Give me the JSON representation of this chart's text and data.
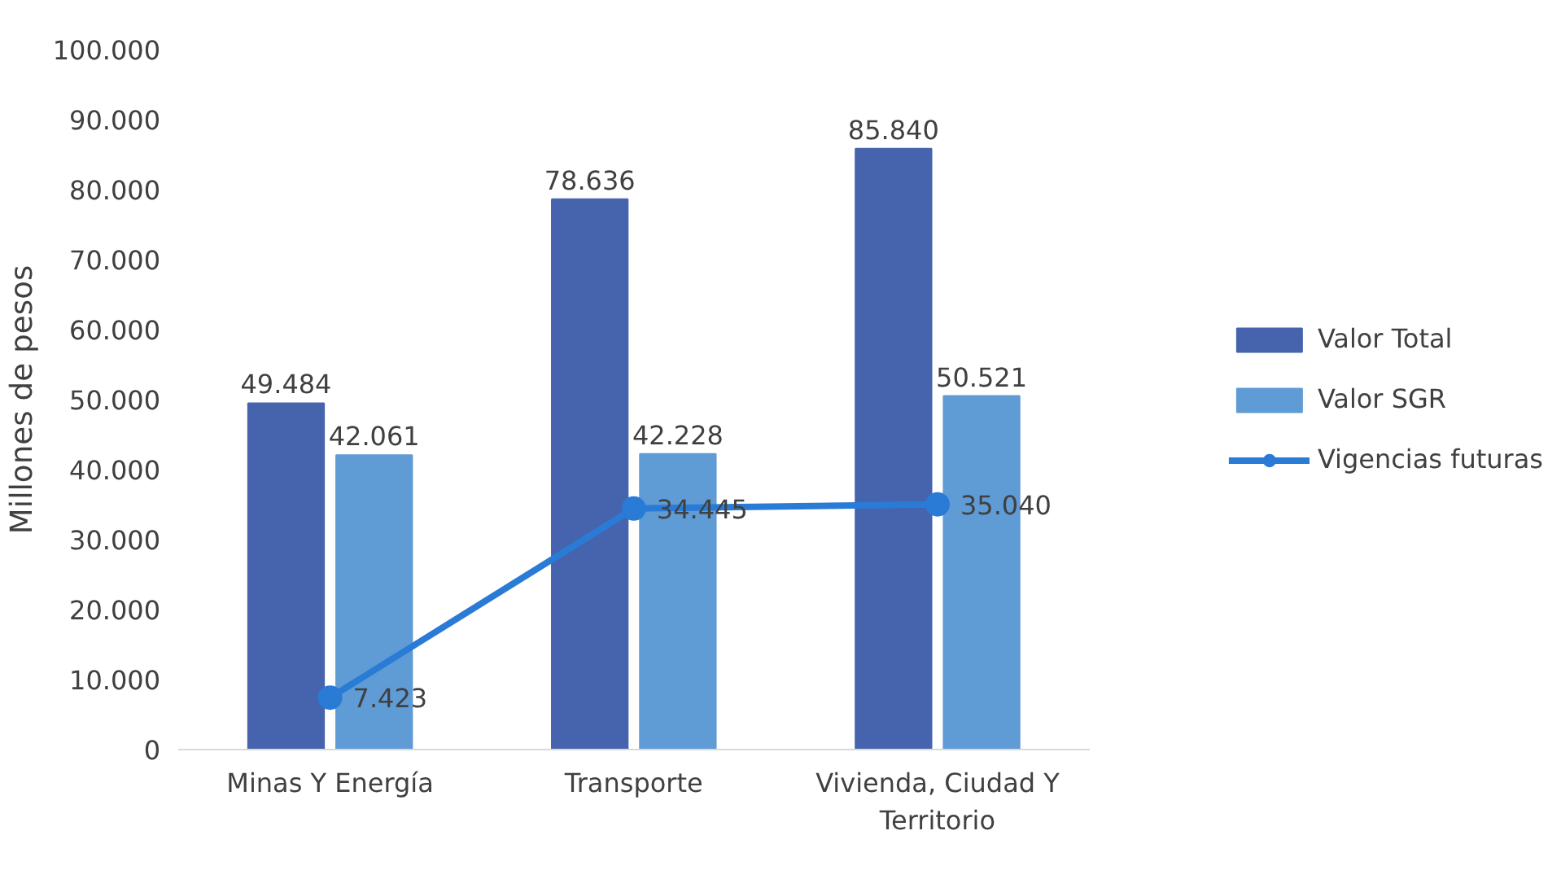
{
  "chart_data": {
    "type": "bar",
    "ylabel": "Millones de pesos",
    "categories": [
      "Minas Y Energía",
      "Transporte",
      "Vivienda, Ciudad Y Territorio"
    ],
    "series": [
      {
        "name": "Valor Total",
        "color": "#4664ad",
        "values": [
          49484,
          78636,
          85840
        ],
        "value_labels": [
          "49.484",
          "78.636",
          "85.840"
        ]
      },
      {
        "name": "Valor SGR",
        "color": "#5f9bd5",
        "values": [
          42061,
          42228,
          50521
        ],
        "value_labels": [
          "42.061",
          "42.228",
          "50.521"
        ]
      },
      {
        "name": "Vigencias futuras",
        "type": "line",
        "color": "#2a7bd6",
        "marker": "circle",
        "values": [
          7423,
          34445,
          35040
        ],
        "value_labels": [
          "7.423",
          "34.445",
          "35.040"
        ]
      }
    ],
    "ylim": [
      0,
      100000
    ],
    "yticks": [
      {
        "value": 0,
        "label": "0"
      },
      {
        "value": 10000,
        "label": "10.000"
      },
      {
        "value": 20000,
        "label": "20.000"
      },
      {
        "value": 30000,
        "label": "30.000"
      },
      {
        "value": 40000,
        "label": "40.000"
      },
      {
        "value": 50000,
        "label": "50.000"
      },
      {
        "value": 60000,
        "label": "60.000"
      },
      {
        "value": 70000,
        "label": "70.000"
      },
      {
        "value": 80000,
        "label": "80.000"
      },
      {
        "value": 90000,
        "label": "90.000"
      },
      {
        "value": 100000,
        "label": "100.000"
      }
    ],
    "grid": false,
    "legend": "right"
  }
}
